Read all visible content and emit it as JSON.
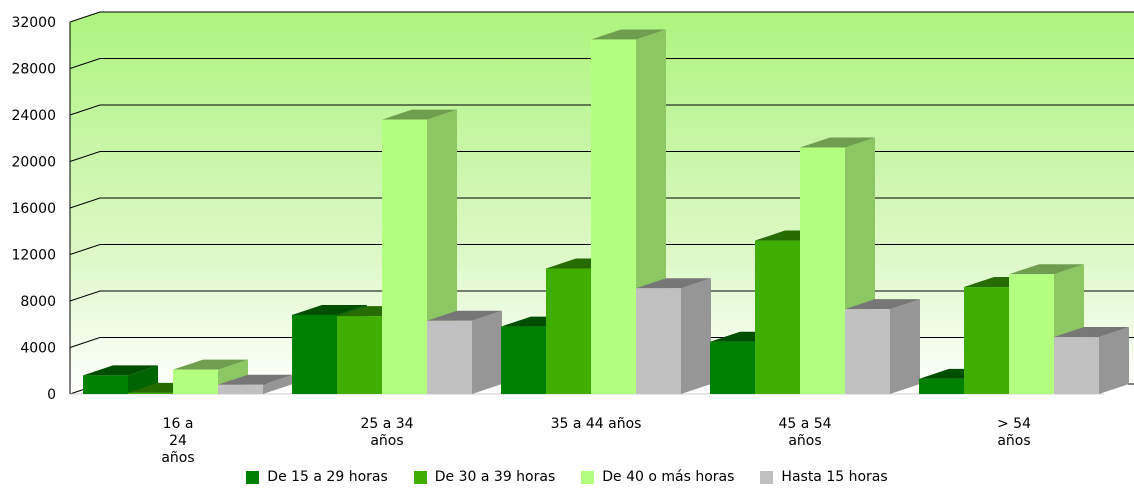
{
  "chart_data": {
    "type": "bar",
    "title": "",
    "xlabel": "",
    "ylabel": "",
    "ylim": [
      0,
      32000
    ],
    "yticks": [
      0,
      4000,
      8000,
      12000,
      16000,
      20000,
      24000,
      28000,
      32000
    ],
    "categories": [
      [
        "16 a",
        "24",
        "años"
      ],
      [
        "25 a 34",
        "años"
      ],
      [
        "35 a 44 años"
      ],
      [
        "45 a 54",
        "años"
      ],
      [
        "> 54",
        "años"
      ]
    ],
    "series": [
      {
        "name": "De 15 a 29 horas",
        "color": "#008000",
        "values": [
          1600,
          6800,
          5800,
          4500,
          1300
        ]
      },
      {
        "name": "De 30 a 39 horas",
        "color": "#3fae00",
        "values": [
          100,
          6700,
          10800,
          13200,
          9200
        ]
      },
      {
        "name": "De 40 o más horas",
        "color": "#b3ff80",
        "values": [
          2100,
          23600,
          30500,
          21200,
          10300
        ]
      },
      {
        "name": "Hasta 15 horas",
        "color": "#c0c0c0",
        "values": [
          800,
          6300,
          9100,
          7300,
          4900
        ]
      }
    ],
    "grid": true,
    "legend_position": "bottom"
  }
}
